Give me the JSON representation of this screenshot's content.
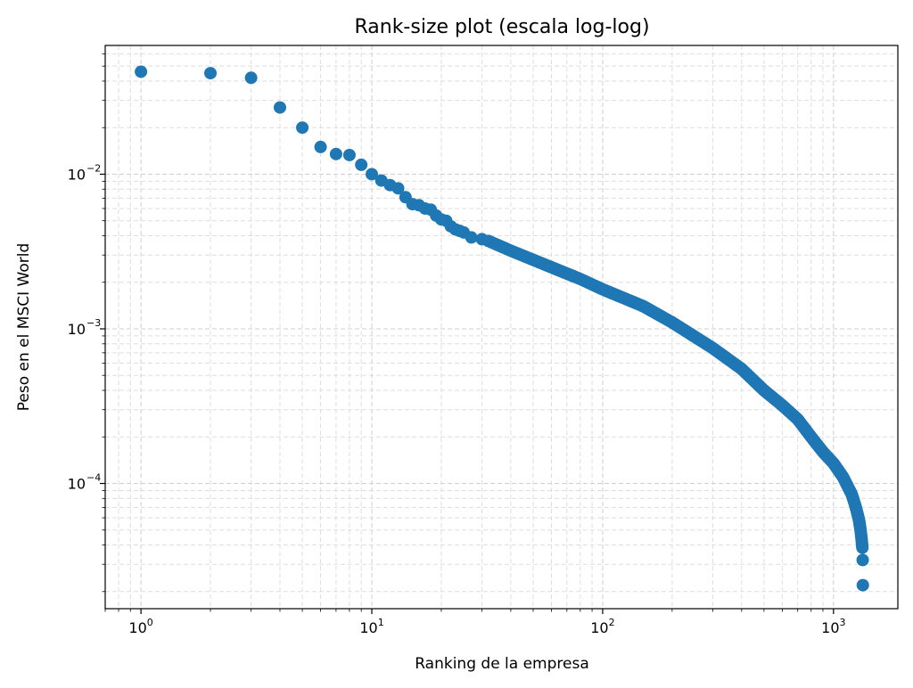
{
  "chart_data": {
    "type": "scatter",
    "title": "Rank-size plot (escala log-log)",
    "xlabel": "Ranking de la empresa",
    "ylabel": "Peso en el MSCI World",
    "x_scale": "log",
    "y_scale": "log",
    "xlim": [
      0.7,
      1900
    ],
    "ylim": [
      1.55e-05,
      0.068
    ],
    "grid": true,
    "grid_style": "dashed, major and minor",
    "marker_color": "#1f77b4",
    "x_ticks": [
      {
        "base": "10",
        "exp": "0",
        "value": 1
      },
      {
        "base": "10",
        "exp": "1",
        "value": 10
      },
      {
        "base": "10",
        "exp": "2",
        "value": 100
      },
      {
        "base": "10",
        "exp": "3",
        "value": 1000
      }
    ],
    "y_ticks": [
      {
        "base": "10",
        "exp": "−4",
        "value": 0.0001
      },
      {
        "base": "10",
        "exp": "−3",
        "value": 0.001
      },
      {
        "base": "10",
        "exp": "−2",
        "value": 0.01
      }
    ],
    "points_top": [
      [
        1,
        0.046
      ],
      [
        2,
        0.045
      ],
      [
        3,
        0.042
      ],
      [
        4,
        0.027
      ],
      [
        5,
        0.02
      ],
      [
        6,
        0.015
      ],
      [
        7,
        0.0135
      ],
      [
        8,
        0.0133
      ],
      [
        9,
        0.0115
      ],
      [
        10,
        0.01
      ],
      [
        11,
        0.0091
      ],
      [
        12,
        0.0085
      ],
      [
        13,
        0.0081
      ],
      [
        14,
        0.0071
      ],
      [
        15,
        0.0064
      ],
      [
        16,
        0.0063
      ],
      [
        17,
        0.006
      ],
      [
        18,
        0.0059
      ],
      [
        19,
        0.0054
      ],
      [
        20,
        0.0051
      ],
      [
        21,
        0.005
      ],
      [
        22,
        0.0046
      ],
      [
        23,
        0.0044
      ],
      [
        24,
        0.0043
      ],
      [
        25,
        0.0042
      ],
      [
        27,
        0.0039
      ],
      [
        30,
        0.0038
      ],
      [
        32,
        0.0037
      ]
    ],
    "curve_knots": [
      [
        32,
        0.0037
      ],
      [
        40,
        0.0032
      ],
      [
        60,
        0.0025
      ],
      [
        80,
        0.0021
      ],
      [
        100,
        0.0018
      ],
      [
        150,
        0.0014
      ],
      [
        200,
        0.0011
      ],
      [
        300,
        0.00075
      ],
      [
        400,
        0.00055
      ],
      [
        500,
        0.0004
      ],
      [
        600,
        0.00032
      ],
      [
        700,
        0.00026
      ],
      [
        800,
        0.0002
      ],
      [
        900,
        0.00016
      ],
      [
        1000,
        0.000135
      ],
      [
        1100,
        0.00011
      ],
      [
        1200,
        8.5e-05
      ],
      [
        1250,
        7e-05
      ],
      [
        1290,
        5.8e-05
      ],
      [
        1310,
        5e-05
      ],
      [
        1325,
        4.3e-05
      ],
      [
        1335,
        3.8e-05
      ]
    ],
    "curve_end_rank": 1335,
    "points_tail": [
      [
        1338,
        3.2e-05
      ],
      [
        1340,
        2.2e-05
      ]
    ]
  }
}
